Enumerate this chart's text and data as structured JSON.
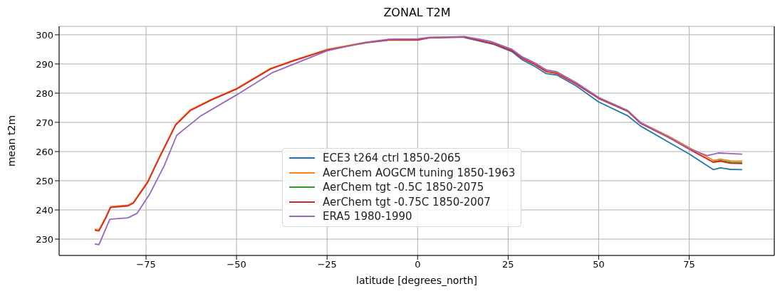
{
  "chart_data": {
    "type": "line",
    "title": "ZONAL T2M",
    "xlabel": "latitude [degrees_north]",
    "ylabel": "mean t2m",
    "xlim": [
      -99,
      98.5
    ],
    "ylim": [
      224.4,
      302.9
    ],
    "xticks": [
      {
        "value": -75,
        "label": "−75"
      },
      {
        "value": -50,
        "label": "−50"
      },
      {
        "value": -25,
        "label": "−25"
      },
      0,
      25,
      50,
      75
    ],
    "yticks": [
      230,
      240,
      250,
      260,
      270,
      280,
      290,
      300
    ],
    "grid": true,
    "legend": "bottom",
    "line_style": "solid",
    "marker": "none",
    "series": [
      {
        "name": "ECE3 t264 ctrl 1850-2065",
        "color": "#1f77b4",
        "x": [
          13,
          20.8,
          26.1,
          28.7,
          32.6,
          35.5,
          38.5,
          43.8,
          50,
          58.1,
          61.5,
          69.3,
          75.2,
          81.7,
          83.6,
          86.4,
          89.5
        ],
        "values": [
          299,
          296.8,
          294.2,
          291.6,
          289,
          286.7,
          286.2,
          282.5,
          277,
          272.2,
          268.8,
          263.2,
          259,
          253.8,
          254.4,
          253.9,
          253.8
        ]
      },
      {
        "name": "AerChem AOGCM tuning 1850-1963",
        "color": "#ff7f0e",
        "x": [
          -89,
          -88,
          -86.2,
          -84.8,
          -79.9,
          -78.5,
          -74.6,
          -71.5,
          -66.8,
          -62.8,
          -56.9,
          -50,
          -40.6,
          -34.2,
          -24.9,
          -14.5,
          -7.9,
          0,
          3.1,
          13,
          20.8,
          26.1,
          28.7,
          32.6,
          35.5,
          38.5,
          43.8,
          50,
          58.1,
          61.5,
          69.3,
          75.2,
          81.7,
          83.6,
          86.4,
          89.5
        ],
        "values": [
          233.4,
          233.2,
          237.4,
          241.1,
          241.7,
          242.6,
          249.6,
          257.7,
          269.4,
          274.3,
          277.9,
          281.6,
          288.5,
          291.3,
          295,
          297.4,
          298.4,
          298.4,
          299.1,
          299.3,
          297.1,
          294.7,
          292.3,
          289.9,
          287.8,
          287.1,
          283.5,
          278.5,
          274,
          270,
          265.3,
          261.2,
          257,
          257.4,
          256.8,
          256.7
        ]
      },
      {
        "name": "AerChem tgt -0.5C 1850-2075",
        "color": "#2ca02c",
        "x": [
          81.7,
          83.6,
          86.4,
          89.5
        ],
        "values": [
          256.5,
          256.9,
          256.3,
          256.2
        ]
      },
      {
        "name": "AerChem tgt -0.75C 1850-2007",
        "color": "#d62728",
        "x": [
          -89,
          -88,
          -86.2,
          -84.8,
          -79.9,
          -78.5,
          -74.6,
          -71.5,
          -66.8,
          -62.8,
          -56.9,
          -50,
          -40.6,
          -34.2,
          -24.9,
          -14.5,
          -7.9,
          0,
          3.1,
          13,
          20.8,
          26.1,
          28.7,
          32.6,
          35.5,
          38.5,
          43.8,
          50,
          58.1,
          61.5,
          69.3,
          75.2,
          81.7,
          83.6,
          86.4,
          89.5
        ],
        "values": [
          233,
          232.8,
          237,
          240.8,
          241.4,
          242.3,
          249.3,
          257.4,
          269.1,
          274,
          277.7,
          281.4,
          288.3,
          291.1,
          294.8,
          297.2,
          298.2,
          298.2,
          298.9,
          299.2,
          297,
          294.5,
          292.1,
          289.6,
          287.4,
          286.7,
          283.1,
          278.2,
          273.7,
          269.7,
          264.8,
          260.7,
          256.3,
          256.7,
          256,
          255.9
        ]
      },
      {
        "name": "ERA5 1980-1990",
        "color": "#9467bd",
        "x": [
          -89,
          -88,
          -85,
          -80,
          -77.5,
          -74,
          -70,
          -66.5,
          -60,
          -50,
          -40,
          -25,
          -14.5,
          -7.9,
          0,
          3.1,
          13,
          20,
          26.1,
          28.7,
          32.6,
          35.5,
          38.5,
          43.8,
          50,
          58.1,
          61.5,
          69.3,
          75,
          80,
          83,
          89.5
        ],
        "values": [
          228.3,
          228.1,
          236.8,
          237.3,
          238.8,
          245.4,
          255.1,
          265.6,
          272.1,
          279.4,
          287.1,
          294.5,
          297.4,
          298.5,
          298.6,
          299.1,
          299.4,
          297.8,
          295,
          292.6,
          290.2,
          288,
          287.3,
          283.6,
          278.5,
          274,
          270,
          265,
          261,
          258.6,
          259.5,
          259.1
        ]
      }
    ]
  }
}
